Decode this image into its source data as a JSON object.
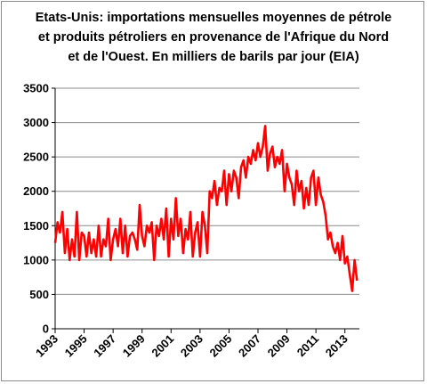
{
  "chart_data": {
    "type": "line",
    "title_lines": [
      "Etats-Unis: importations mensuelles moyennes de pétrole",
      "et produits pétroliers en provenance de l'Afrique du Nord",
      "et de l'Ouest.  En milliers de barils par jour (EIA)"
    ],
    "xlabel": "",
    "ylabel": "",
    "ylim": [
      0,
      3500
    ],
    "xlim": [
      "1993-01",
      "2014-01"
    ],
    "y_ticks": [
      "0",
      "500",
      "1000",
      "1500",
      "2000",
      "2500",
      "3000",
      "3500"
    ],
    "x_ticks": [
      "1993",
      "1995",
      "1997",
      "1999",
      "2001",
      "2003",
      "2005",
      "2007",
      "2009",
      "2011",
      "2013"
    ],
    "grid": "horizontal",
    "legend": "none",
    "series": [
      {
        "color": "#ff0000",
        "x": [
          "1993-01",
          "1993-03",
          "1993-05",
          "1993-07",
          "1993-09",
          "1993-11",
          "1994-01",
          "1994-03",
          "1994-05",
          "1994-07",
          "1994-09",
          "1994-11",
          "1995-01",
          "1995-03",
          "1995-05",
          "1995-07",
          "1995-09",
          "1995-11",
          "1996-01",
          "1996-03",
          "1996-05",
          "1996-07",
          "1996-09",
          "1996-11",
          "1997-01",
          "1997-03",
          "1997-05",
          "1997-07",
          "1997-09",
          "1997-11",
          "1998-01",
          "1998-03",
          "1998-05",
          "1998-07",
          "1998-09",
          "1998-11",
          "1999-01",
          "1999-03",
          "1999-05",
          "1999-07",
          "1999-09",
          "1999-11",
          "2000-01",
          "2000-03",
          "2000-05",
          "2000-07",
          "2000-09",
          "2000-11",
          "2001-01",
          "2001-03",
          "2001-05",
          "2001-07",
          "2001-09",
          "2001-11",
          "2002-01",
          "2002-03",
          "2002-05",
          "2002-07",
          "2002-09",
          "2002-11",
          "2003-01",
          "2003-03",
          "2003-05",
          "2003-07",
          "2003-09",
          "2003-11",
          "2004-01",
          "2004-03",
          "2004-05",
          "2004-07",
          "2004-09",
          "2004-11",
          "2005-01",
          "2005-03",
          "2005-05",
          "2005-07",
          "2005-09",
          "2005-11",
          "2006-01",
          "2006-03",
          "2006-05",
          "2006-07",
          "2006-09",
          "2006-11",
          "2007-01",
          "2007-03",
          "2007-05",
          "2007-07",
          "2007-09",
          "2007-11",
          "2008-01",
          "2008-03",
          "2008-05",
          "2008-07",
          "2008-09",
          "2008-11",
          "2009-01",
          "2009-03",
          "2009-05",
          "2009-07",
          "2009-09",
          "2009-11",
          "2010-01",
          "2010-03",
          "2010-05",
          "2010-07",
          "2010-09",
          "2010-11",
          "2011-01",
          "2011-03",
          "2011-05",
          "2011-07",
          "2011-09",
          "2011-11",
          "2012-01",
          "2012-03",
          "2012-05",
          "2012-07",
          "2012-09",
          "2012-11",
          "2013-01",
          "2013-03",
          "2013-05",
          "2013-07",
          "2013-09",
          "2013-11"
        ],
        "y": [
          1250,
          1550,
          1400,
          1700,
          1100,
          1450,
          1000,
          1300,
          1050,
          1700,
          1000,
          1400,
          1350,
          1050,
          1400,
          1100,
          1300,
          1050,
          1500,
          1050,
          1300,
          1200,
          1600,
          1000,
          1300,
          1450,
          1200,
          1600,
          1100,
          1500,
          1050,
          1350,
          1400,
          1300,
          1150,
          1800,
          1350,
          1200,
          1500,
          1400,
          1550,
          1000,
          1500,
          1350,
          1600,
          1300,
          1750,
          1050,
          1600,
          1300,
          1900,
          1350,
          1600,
          1100,
          1450,
          1300,
          1700,
          1050,
          1400,
          1550,
          1050,
          1700,
          1500,
          1100,
          2000,
          1900,
          2150,
          1800,
          2050,
          2000,
          2300,
          1800,
          2250,
          2000,
          2300,
          2200,
          1900,
          2350,
          2450,
          2200,
          2500,
          2400,
          2600,
          2450,
          2700,
          2500,
          2650,
          2950,
          2300,
          2550,
          2650,
          2350,
          2500,
          2400,
          2600,
          2000,
          2400,
          2200,
          2100,
          1800,
          2300,
          2000,
          2150,
          1750,
          2050,
          1800,
          2200,
          2300,
          1800,
          2200,
          1950,
          1850,
          1650,
          1300,
          1400,
          1200,
          1100,
          1250,
          1000,
          1350,
          950,
          1050,
          800,
          550,
          1000,
          700
        ]
      }
    ]
  }
}
